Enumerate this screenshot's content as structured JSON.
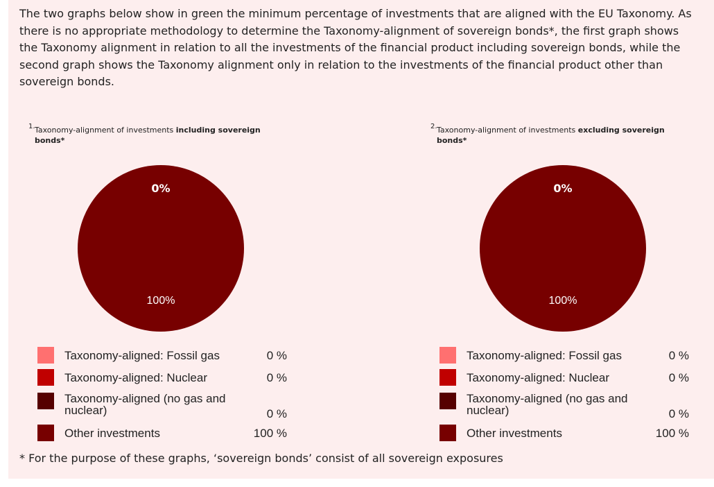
{
  "intro_text": "The two graphs below show in green the minimum percentage of investments that are aligned with the EU Taxonomy. As there is no appropriate methodology to determine the Taxonomy-alignment of sovereign bonds*, the first graph shows the Taxonomy alignment in relation to all the investments of the financial product including sovereign bonds, while the second graph shows the Taxonomy alignment only in relation to the investments of the financial product other than sovereign bonds.",
  "footnote": "* For the purpose of these graphs, ‘sovereign bonds’ consist of all sovereign exposures",
  "colors": {
    "fossil_gas": "#ff7070",
    "nuclear": "#c00000",
    "no_gas_nuclear": "#560000",
    "other": "#770000",
    "panel_bg": "#fdeeee"
  },
  "chart_data": [
    {
      "type": "pie",
      "title_number": "1.",
      "title_prefix": "Taxonomy-alignment of investments",
      "title_bold": "including sovereign bonds*",
      "top_label": "0%",
      "bottom_label": "100%",
      "slices": [
        {
          "label": "Taxonomy-aligned: Fossil gas",
          "value": 0,
          "value_text": "0 %",
          "color": "#ff7070"
        },
        {
          "label": "Taxonomy-aligned: Nuclear",
          "value": 0,
          "value_text": "0 %",
          "color": "#c00000"
        },
        {
          "label": "Taxonomy-aligned (no gas and nuclear)",
          "value": 0,
          "value_text": "0 %",
          "color": "#560000"
        },
        {
          "label": "Other investments",
          "value": 100,
          "value_text": "100 %",
          "color": "#770000"
        }
      ]
    },
    {
      "type": "pie",
      "title_number": "2.",
      "title_prefix": "Taxonomy-alignment of investments",
      "title_bold": "excluding sovereign bonds*",
      "top_label": "0%",
      "bottom_label": "100%",
      "slices": [
        {
          "label": "Taxonomy-aligned: Fossil gas",
          "value": 0,
          "value_text": "0 %",
          "color": "#ff7070"
        },
        {
          "label": "Taxonomy-aligned: Nuclear",
          "value": 0,
          "value_text": "0 %",
          "color": "#c00000"
        },
        {
          "label": "Taxonomy-aligned (no gas and nuclear)",
          "value": 0,
          "value_text": "0 %",
          "color": "#560000"
        },
        {
          "label": "Other investments",
          "value": 100,
          "value_text": "100 %",
          "color": "#770000"
        }
      ]
    }
  ]
}
